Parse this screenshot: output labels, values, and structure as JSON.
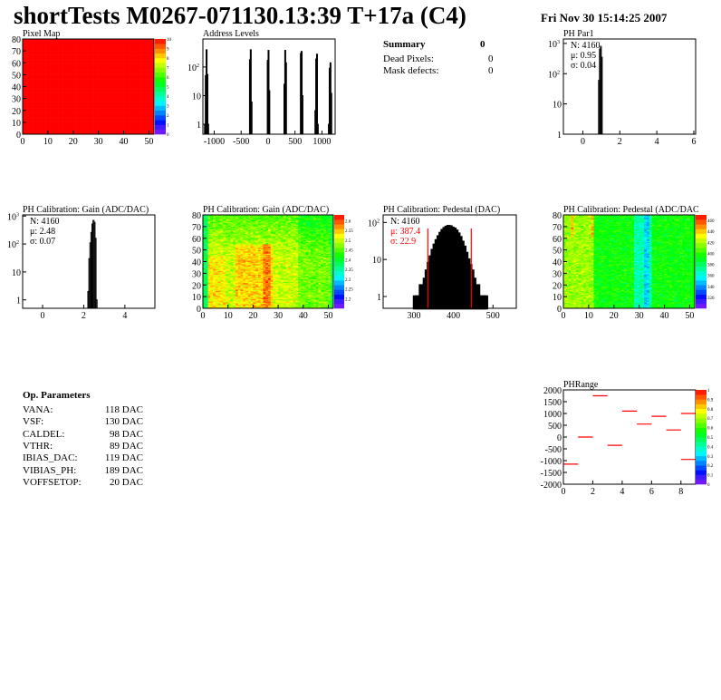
{
  "header": {
    "title": "shortTests M0267-071130.13:39 T+17a (C4)",
    "date": "Fri Nov 30 15:14:25 2007"
  },
  "summary": {
    "heading": "Summary",
    "total": "0",
    "rows": [
      {
        "label": "Dead Pixels:",
        "value": "0"
      },
      {
        "label": "Mask defects:",
        "value": "0"
      }
    ]
  },
  "op_parameters": {
    "heading": "Op. Parameters",
    "rows": [
      {
        "label": "VANA:",
        "value": "118 DAC"
      },
      {
        "label": "VSF:",
        "value": "130 DAC"
      },
      {
        "label": "CALDEL:",
        "value": "98 DAC"
      },
      {
        "label": "VTHR:",
        "value": "89 DAC"
      },
      {
        "label": "IBIAS_DAC:",
        "value": "119 DAC"
      },
      {
        "label": "VIBIAS_PH:",
        "value": "189 DAC"
      },
      {
        "label": "VOFFSETOP:",
        "value": "20 DAC"
      }
    ]
  },
  "colors": {
    "frame": "#000000",
    "red": "#ff0000",
    "background": "#ffffff"
  },
  "chart_data": [
    {
      "id": "pixel-map",
      "type": "heatmap",
      "title": "Pixel Map",
      "xlim": [
        0,
        52
      ],
      "ylim": [
        0,
        80
      ],
      "zlim": [
        0,
        10
      ],
      "xticks": [
        0,
        10,
        20,
        30,
        40,
        50
      ],
      "yticks": [
        0,
        10,
        20,
        30,
        40,
        50,
        60,
        70,
        80
      ],
      "zticks": [
        0,
        1,
        2,
        3,
        4,
        5,
        6,
        7,
        8,
        9,
        10
      ],
      "uniform_value": 10
    },
    {
      "id": "address-levels",
      "type": "bar",
      "title": "Address Levels",
      "xlim": [
        -1210,
        1245
      ],
      "ylim": [
        0.45,
        950
      ],
      "log_y": true,
      "xticks": [
        -1000,
        -500,
        0,
        500,
        1000
      ],
      "yticks": [
        1,
        10,
        100
      ],
      "bins": [
        [
          -1180,
          1
        ],
        [
          -1165,
          50
        ],
        [
          -1150,
          400
        ],
        [
          -1135,
          55
        ],
        [
          -1120,
          1
        ],
        [
          -345,
          180
        ],
        [
          -330,
          400
        ],
        [
          -315,
          6
        ],
        [
          -15,
          170
        ],
        [
          0,
          380
        ],
        [
          15,
          15
        ],
        [
          295,
          25
        ],
        [
          310,
          380
        ],
        [
          325,
          140
        ],
        [
          600,
          300
        ],
        [
          615,
          350
        ],
        [
          630,
          10
        ],
        [
          870,
          3
        ],
        [
          885,
          190
        ],
        [
          900,
          280
        ],
        [
          915,
          1
        ],
        [
          1120,
          1
        ],
        [
          1135,
          90
        ],
        [
          1150,
          140
        ],
        [
          1165,
          12
        ]
      ]
    },
    {
      "id": "ph-par1",
      "type": "bar",
      "title": "PH Par1",
      "xlim": [
        -1.05,
        6.1
      ],
      "ylim": [
        1,
        1400
      ],
      "log_y": true,
      "xticks": [
        0,
        2,
        4,
        6
      ],
      "yticks": [
        1,
        10,
        100,
        1000
      ],
      "stats": [
        "N: 4160",
        "μ: 0.95",
        "σ: 0.04"
      ],
      "bins": [
        [
          0.8,
          1
        ],
        [
          0.85,
          60
        ],
        [
          0.9,
          650
        ],
        [
          0.95,
          800
        ],
        [
          1.0,
          350
        ],
        [
          1.05,
          1
        ]
      ]
    },
    {
      "id": "gain-hist",
      "type": "bar",
      "title": "PH Calibration: Gain (ADC/DAC)",
      "xlim": [
        -0.97,
        5.46
      ],
      "ylim": [
        0.5,
        1100
      ],
      "log_y": true,
      "xticks": [
        0,
        2,
        4
      ],
      "yticks": [
        1,
        10,
        100,
        1000
      ],
      "stats": [
        "N: 4160",
        "μ: 2.48",
        "σ: 0.07"
      ],
      "bins": [
        [
          2.2,
          2
        ],
        [
          2.25,
          30
        ],
        [
          2.3,
          110
        ],
        [
          2.35,
          260
        ],
        [
          2.4,
          520
        ],
        [
          2.45,
          700
        ],
        [
          2.5,
          600
        ],
        [
          2.55,
          160
        ],
        [
          2.6,
          1
        ]
      ]
    },
    {
      "id": "gain-map",
      "type": "heatmap",
      "title": "PH Calibration: Gain (ADC/DAC)",
      "xlim": [
        0,
        52
      ],
      "ylim": [
        0,
        80
      ],
      "zlim": [
        2.15,
        2.63
      ],
      "xticks": [
        0,
        10,
        20,
        30,
        40,
        50
      ],
      "yticks": [
        0,
        10,
        20,
        30,
        40,
        50,
        60,
        70,
        80
      ],
      "zticks": [
        2.2,
        2.25,
        2.3,
        2.35,
        2.4,
        2.45,
        2.5,
        2.55,
        2.6
      ]
    },
    {
      "id": "pedestal-hist",
      "type": "bar",
      "title": "PH Calibration: Pedestal (DAC)",
      "xlim": [
        222,
        559
      ],
      "ylim": [
        0.48,
        160
      ],
      "log_y": true,
      "xticks": [
        300,
        400,
        500
      ],
      "yticks": [
        1,
        10,
        100
      ],
      "stats": [
        "N: 4160",
        "μ: 387.4",
        "σ: 22.9"
      ],
      "fit_range": [
        335,
        445
      ],
      "bin_start": 300,
      "bin_width": 5,
      "counts": [
        1,
        1,
        1,
        2,
        2,
        3,
        5,
        8,
        12,
        18,
        25,
        33,
        42,
        52,
        62,
        70,
        76,
        80,
        78,
        72,
        68,
        60,
        50,
        40,
        30,
        22,
        15,
        10,
        7,
        5,
        3,
        2,
        2,
        1,
        1,
        1,
        1
      ]
    },
    {
      "id": "pedestal-map",
      "type": "heatmap",
      "title": "PH Calibration: Pedestal (ADC/DAC",
      "xlim": [
        0,
        52
      ],
      "ylim": [
        0,
        80
      ],
      "zlim": [
        300,
        470
      ],
      "xticks": [
        0,
        10,
        20,
        30,
        40,
        50
      ],
      "yticks": [
        0,
        10,
        20,
        30,
        40,
        50,
        60,
        70,
        80
      ],
      "zticks": [
        320,
        340,
        360,
        380,
        400,
        420,
        440,
        460
      ]
    },
    {
      "id": "ph-range",
      "type": "scatter",
      "title": "PHRange",
      "xlim": [
        0,
        9
      ],
      "ylim": [
        -2000,
        2000
      ],
      "zlim": [
        0,
        1
      ],
      "xticks": [
        0,
        2,
        4,
        6,
        8
      ],
      "yticks": [
        -2000,
        -1500,
        -1000,
        -500,
        0,
        500,
        1000,
        1500,
        2000
      ],
      "zticks": [
        0,
        0.1,
        0.2,
        0.3,
        0.4,
        0.5,
        0.6,
        0.7,
        0.8,
        0.9,
        1
      ],
      "segments": [
        [
          0,
          -1150
        ],
        [
          1,
          0
        ],
        [
          2,
          1750
        ],
        [
          3,
          -350
        ],
        [
          4,
          1100
        ],
        [
          5,
          550
        ],
        [
          6,
          880
        ],
        [
          7,
          300
        ],
        [
          8,
          1000
        ],
        [
          8,
          -950
        ]
      ]
    }
  ]
}
